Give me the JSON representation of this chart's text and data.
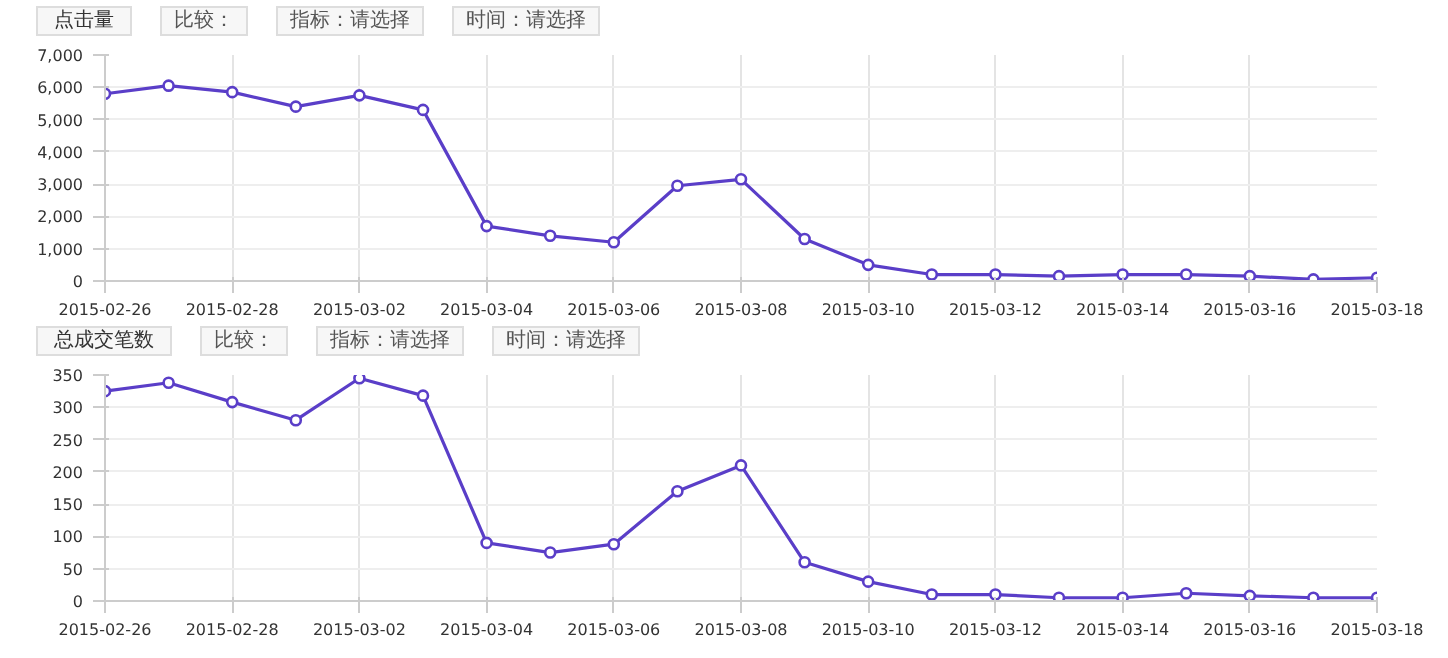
{
  "chart_data": [
    {
      "type": "line",
      "title": "点击量",
      "annotations": [
        "比较：",
        "指标：请选择",
        "时间：请选择"
      ],
      "x": [
        "2015-02-26",
        "2015-02-27",
        "2015-02-28",
        "2015-03-01",
        "2015-03-02",
        "2015-03-03",
        "2015-03-04",
        "2015-03-05",
        "2015-03-06",
        "2015-03-07",
        "2015-03-08",
        "2015-03-09",
        "2015-03-10",
        "2015-03-11",
        "2015-03-12",
        "2015-03-13",
        "2015-03-14",
        "2015-03-15",
        "2015-03-16",
        "2015-03-17",
        "2015-03-18"
      ],
      "series": [
        {
          "color": "#5a3ec8",
          "values": [
            5800,
            6050,
            5850,
            5400,
            5750,
            5300,
            1700,
            1400,
            1200,
            2950,
            3150,
            1300,
            500,
            200,
            200,
            150,
            200,
            200,
            150,
            50,
            100
          ]
        }
      ],
      "xlim": [
        "2015-02-26",
        "2015-03-18"
      ],
      "xticks": [
        "2015-02-26",
        "2015-02-28",
        "2015-03-02",
        "2015-03-04",
        "2015-03-06",
        "2015-03-08",
        "2015-03-10",
        "2015-03-12",
        "2015-03-14",
        "2015-03-16",
        "2015-03-18"
      ],
      "ylim": [
        0,
        7000
      ],
      "yticks": [
        0,
        {
          "value": 1000,
          "label": "1,000"
        },
        {
          "value": 2000,
          "label": "2,000"
        },
        {
          "value": 3000,
          "label": "3,000"
        },
        {
          "value": 4000,
          "label": "4,000"
        },
        {
          "value": 5000,
          "label": "5,000"
        },
        {
          "value": 6000,
          "label": "6,000"
        },
        {
          "value": 7000,
          "label": "7,000"
        }
      ],
      "grid": true,
      "marker": "circle",
      "line_style": "solid"
    },
    {
      "type": "line",
      "title": "总成交笔数",
      "annotations": [
        "比较：",
        "指标：请选择",
        "时间：请选择"
      ],
      "x": [
        "2015-02-26",
        "2015-02-27",
        "2015-02-28",
        "2015-03-01",
        "2015-03-02",
        "2015-03-03",
        "2015-03-04",
        "2015-03-05",
        "2015-03-06",
        "2015-03-07",
        "2015-03-08",
        "2015-03-09",
        "2015-03-10",
        "2015-03-11",
        "2015-03-12",
        "2015-03-13",
        "2015-03-14",
        "2015-03-15",
        "2015-03-16",
        "2015-03-17",
        "2015-03-18"
      ],
      "series": [
        {
          "color": "#5a3ec8",
          "values": [
            325,
            338,
            308,
            280,
            345,
            318,
            90,
            75,
            88,
            170,
            210,
            60,
            30,
            10,
            10,
            5,
            5,
            12,
            8,
            5,
            5
          ]
        }
      ],
      "xlim": [
        "2015-02-26",
        "2015-03-18"
      ],
      "xticks": [
        "2015-02-26",
        "2015-02-28",
        "2015-03-02",
        "2015-03-04",
        "2015-03-06",
        "2015-03-08",
        "2015-03-10",
        "2015-03-12",
        "2015-03-14",
        "2015-03-16",
        "2015-03-18"
      ],
      "ylim": [
        0,
        350
      ],
      "yticks": [
        0,
        50,
        100,
        150,
        200,
        250,
        300,
        350
      ],
      "grid": true,
      "marker": "circle",
      "line_style": "solid"
    }
  ]
}
